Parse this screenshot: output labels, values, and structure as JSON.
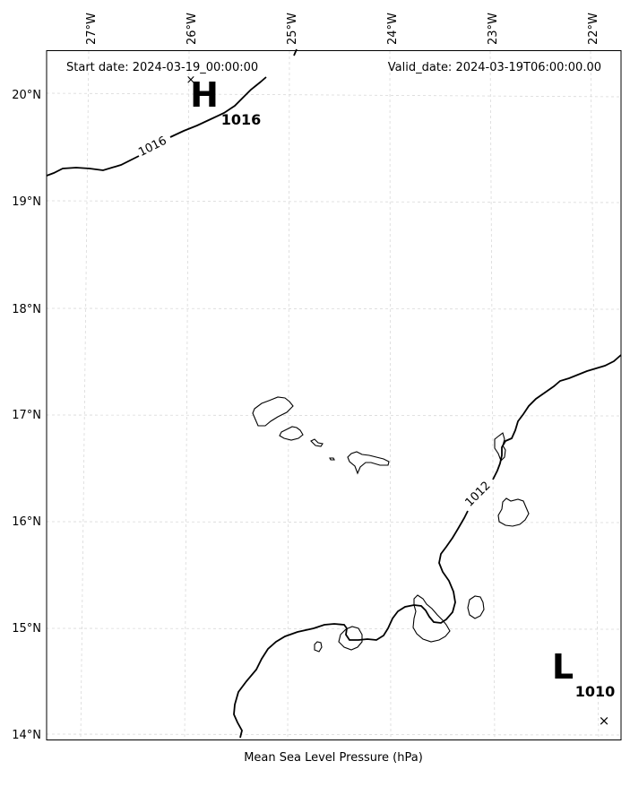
{
  "header": {
    "start_date": "Start date: 2024-03-19_00:00:00",
    "valid_date": "Valid_date: 2024-03-19T06:00:00.00"
  },
  "footer": {
    "xlabel": "Mean Sea Level Pressure (hPa)"
  },
  "axes": {
    "lon_labels": [
      "27°W",
      "26°W",
      "25°W",
      "24°W",
      "23°W",
      "22°W"
    ],
    "lat_labels": [
      "20°N",
      "19°N",
      "18°N",
      "17°N",
      "16°N",
      "15°N",
      "14°N"
    ]
  },
  "isobars": [
    {
      "label": "1016"
    },
    {
      "label": "1012"
    }
  ],
  "pressure_centers": [
    {
      "type": "H",
      "value": "1016"
    },
    {
      "type": "L",
      "value": "1010"
    }
  ],
  "islands": [
    "santo-antao",
    "sao-vicente",
    "santa-luzia",
    "ilheu-raso",
    "sao-nicolau",
    "sal",
    "boa-vista",
    "maio",
    "santiago",
    "fogo",
    "brava"
  ]
}
